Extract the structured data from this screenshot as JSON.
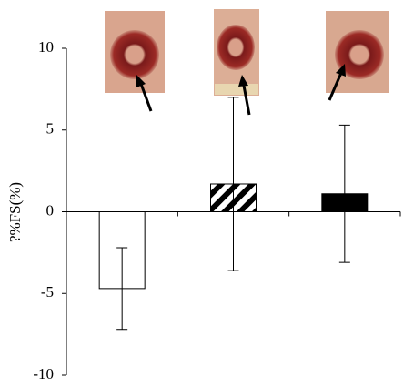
{
  "chart_data": {
    "type": "bar",
    "y_label": "?%FS(%)",
    "categories": [
      null,
      null,
      null
    ],
    "values": [
      -4.7,
      1.7,
      1.1
    ],
    "errors": [
      2.5,
      5.3,
      4.2
    ],
    "colors": [
      "#ffffff",
      "#000000",
      "#000000"
    ],
    "hatch": [
      false,
      true,
      false
    ],
    "ylim": [
      -10,
      10
    ],
    "yticks": [
      10,
      5,
      0,
      -5,
      -10
    ]
  }
}
